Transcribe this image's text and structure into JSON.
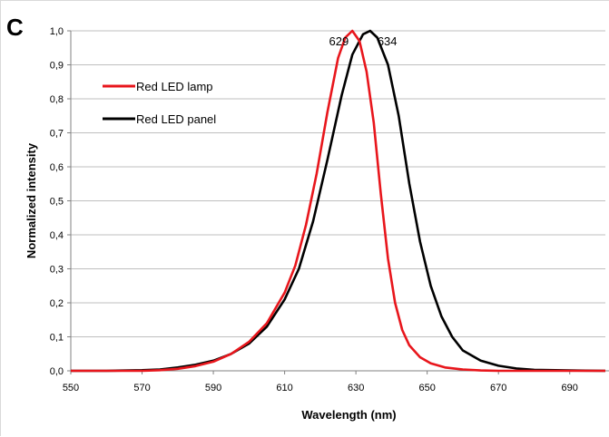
{
  "panel_label": "C",
  "colors": {
    "lamp": "#e8161c",
    "panel": "#000000",
    "grid": "#bfbfbf",
    "axis": "#808080"
  },
  "chart_data": {
    "type": "line",
    "xlabel": "Wavelength (nm)",
    "ylabel": "Normalized intensity",
    "xlim": [
      550,
      700
    ],
    "ylim": [
      0,
      1
    ],
    "x_ticks": [
      "550",
      "570",
      "590",
      "610",
      "630",
      "650",
      "670",
      "690"
    ],
    "y_ticks": [
      "0,0",
      "0,1",
      "0,2",
      "0,3",
      "0,4",
      "0,5",
      "0,6",
      "0,7",
      "0,8",
      "0,9",
      "1,0"
    ],
    "grid": "horizontal",
    "legend_position": "top-left",
    "series": [
      {
        "name": "Red LED lamp",
        "color": "#e8161c",
        "x": [
          550,
          560,
          570,
          575,
          580,
          585,
          590,
          595,
          600,
          605,
          610,
          613,
          616,
          619,
          622,
          625,
          627,
          629,
          631,
          633,
          635,
          637,
          639,
          641,
          643,
          645,
          648,
          651,
          655,
          660,
          665,
          670,
          680,
          690,
          700
        ],
        "y": [
          0.0,
          0.0,
          0.0,
          0.002,
          0.006,
          0.014,
          0.027,
          0.05,
          0.085,
          0.14,
          0.23,
          0.31,
          0.43,
          0.58,
          0.76,
          0.92,
          0.98,
          1.0,
          0.97,
          0.88,
          0.73,
          0.52,
          0.33,
          0.2,
          0.12,
          0.075,
          0.04,
          0.022,
          0.01,
          0.004,
          0.001,
          0.0,
          0.0,
          0.0,
          0.0
        ]
      },
      {
        "name": "Red LED panel",
        "color": "#000000",
        "x": [
          550,
          560,
          570,
          575,
          580,
          585,
          590,
          595,
          600,
          605,
          610,
          614,
          618,
          622,
          626,
          629,
          632,
          634,
          636,
          639,
          642,
          645,
          648,
          651,
          654,
          657,
          660,
          665,
          670,
          675,
          680,
          690,
          700
        ],
        "y": [
          0.0,
          0.0,
          0.002,
          0.004,
          0.01,
          0.018,
          0.03,
          0.05,
          0.08,
          0.13,
          0.21,
          0.3,
          0.44,
          0.62,
          0.81,
          0.93,
          0.99,
          1.0,
          0.98,
          0.9,
          0.75,
          0.55,
          0.38,
          0.25,
          0.16,
          0.1,
          0.06,
          0.03,
          0.015,
          0.007,
          0.003,
          0.001,
          0.0
        ]
      }
    ],
    "annotations": [
      {
        "text": "629",
        "x": 629,
        "y": 1.0,
        "anchor": "end"
      },
      {
        "text": "634",
        "x": 634,
        "y": 1.0,
        "anchor": "start"
      }
    ]
  }
}
